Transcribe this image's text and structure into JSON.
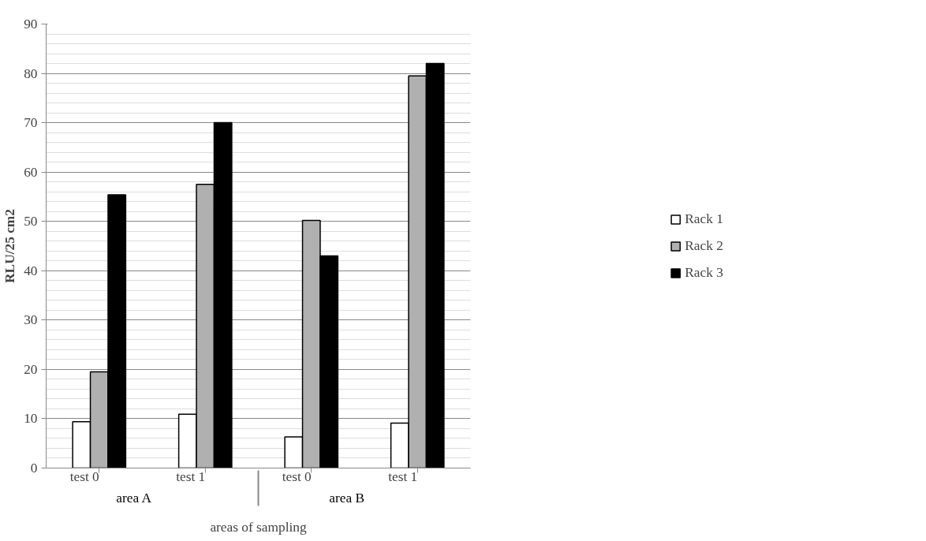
{
  "chart_data": {
    "type": "bar",
    "ylabel": "RLU/25 cm2",
    "xlabel": "areas of sampling",
    "categories": [
      "test 0",
      "test 1",
      "test 0",
      "test 1"
    ],
    "annotations": [
      "area A",
      "area B"
    ],
    "series": [
      {
        "name": "Rack 1",
        "color": "#ffffff",
        "values": [
          9.4,
          10.9,
          6.3,
          9.1
        ]
      },
      {
        "name": "Rack 2",
        "color": "#b0b0b0",
        "values": [
          19.5,
          57.5,
          50.2,
          79.5
        ]
      },
      {
        "name": "Rack 3",
        "color": "#000000",
        "values": [
          55.4,
          70.0,
          43.0,
          82.0
        ]
      }
    ],
    "ylim": [
      0,
      90
    ],
    "yticks": [
      0,
      10,
      20,
      30,
      40,
      50,
      60,
      70,
      80,
      90
    ],
    "grid": "y",
    "legend": "right"
  }
}
